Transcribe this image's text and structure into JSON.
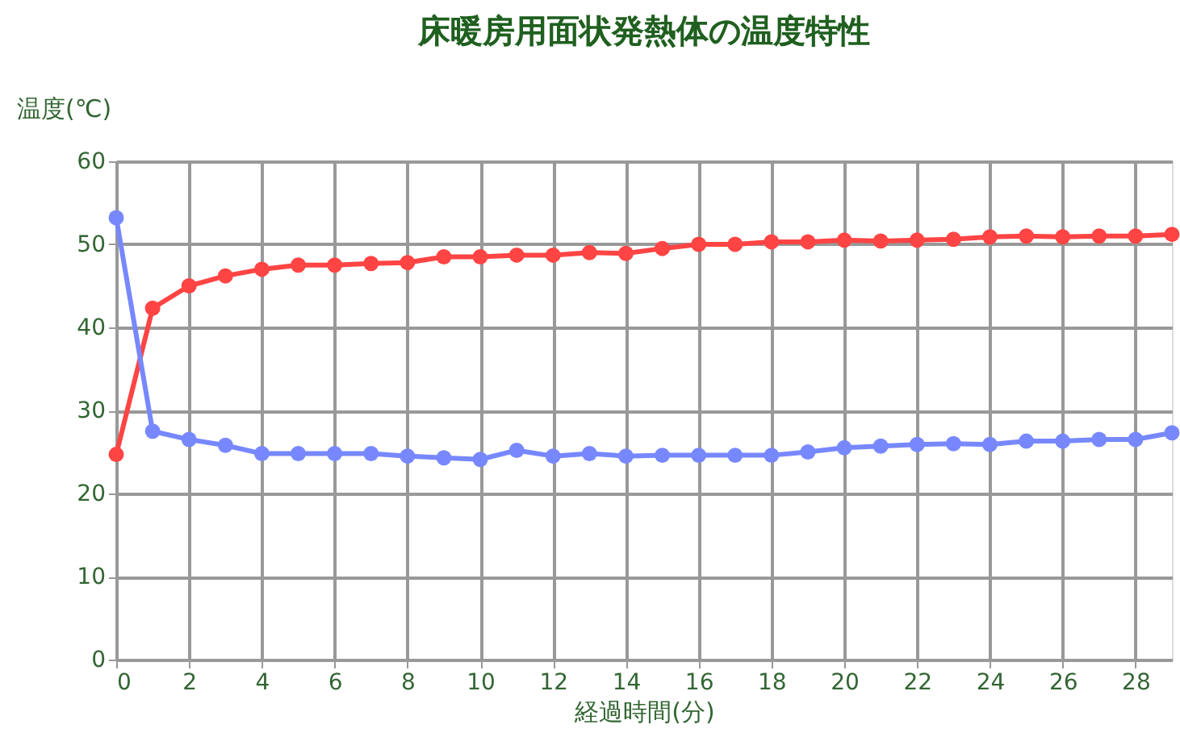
{
  "chart_data": {
    "type": "line",
    "title": "床暖房用面状発熱体の温度特性",
    "xlabel": "経過時間(分)",
    "ylabel": "温度(℃)",
    "x": [
      0,
      1,
      2,
      3,
      4,
      5,
      6,
      7,
      8,
      9,
      10,
      11,
      12,
      13,
      14,
      15,
      16,
      17,
      18,
      19,
      20,
      21,
      22,
      23,
      24,
      25,
      26,
      27,
      28,
      29
    ],
    "series": [
      {
        "color": "#ff4444",
        "values": [
          24.7,
          42.3,
          45,
          46.2,
          47,
          47.5,
          47.5,
          47.7,
          47.8,
          48.5,
          48.5,
          48.7,
          48.7,
          49,
          48.9,
          49.5,
          50,
          50,
          50.3,
          50.3,
          50.5,
          50.4,
          50.5,
          50.6,
          50.9,
          51,
          50.9,
          51,
          51,
          51.2
        ]
      },
      {
        "color": "#7788ff",
        "values": [
          53.2,
          27.5,
          26.5,
          25.8,
          24.8,
          24.8,
          24.8,
          24.8,
          24.5,
          24.3,
          24.1,
          25.2,
          24.5,
          24.8,
          24.5,
          24.6,
          24.6,
          24.6,
          24.6,
          25,
          25.5,
          25.7,
          25.9,
          26,
          25.9,
          26.3,
          26.3,
          26.5,
          26.5,
          27.3
        ]
      }
    ],
    "xlim": [
      0,
      29
    ],
    "xticks": [
      0,
      2,
      4,
      6,
      8,
      10,
      12,
      14,
      16,
      18,
      20,
      22,
      24,
      26,
      28
    ],
    "ylim": [
      0,
      60
    ],
    "yticks": [
      0,
      10,
      20,
      30,
      40,
      50,
      60
    ],
    "grid": true,
    "legend": false,
    "marker": "circle",
    "line_style": "solid"
  }
}
